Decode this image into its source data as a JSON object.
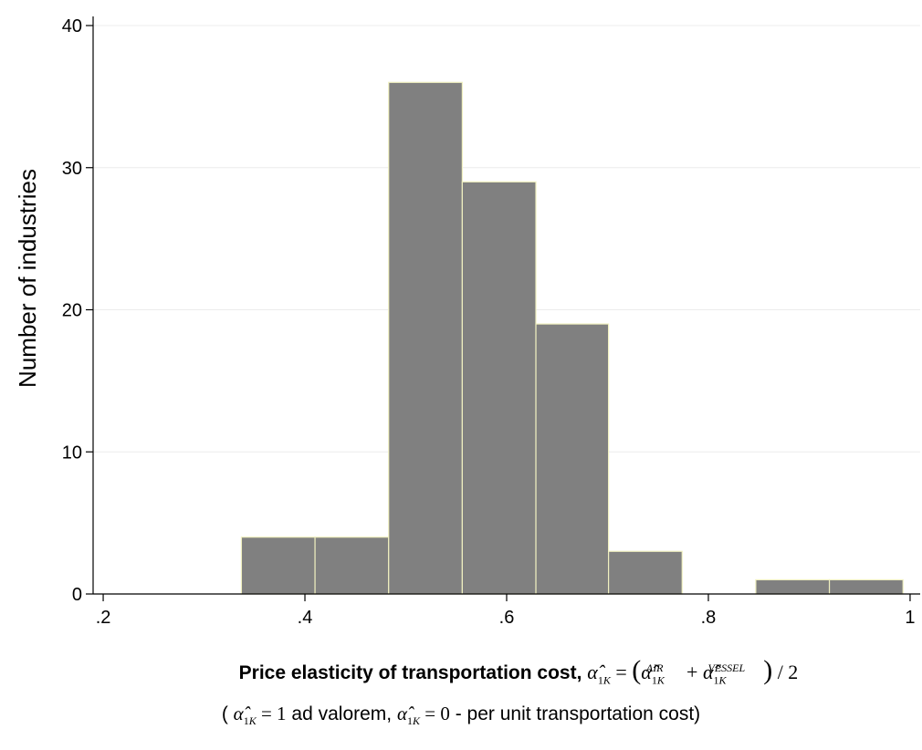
{
  "chart_data": {
    "type": "bar",
    "subtype": "histogram",
    "bins": [
      {
        "x0": 0.337,
        "x1": 0.41,
        "count": 4
      },
      {
        "x0": 0.41,
        "x1": 0.483,
        "count": 4
      },
      {
        "x0": 0.483,
        "x1": 0.556,
        "count": 36
      },
      {
        "x0": 0.556,
        "x1": 0.629,
        "count": 29
      },
      {
        "x0": 0.629,
        "x1": 0.701,
        "count": 19
      },
      {
        "x0": 0.701,
        "x1": 0.774,
        "count": 3
      },
      {
        "x0": 0.774,
        "x1": 0.847,
        "count": 0
      },
      {
        "x0": 0.847,
        "x1": 0.92,
        "count": 1
      },
      {
        "x0": 0.92,
        "x1": 0.993,
        "count": 1
      }
    ],
    "xlim": [
      0.19,
      1.01
    ],
    "ylim": [
      0,
      40
    ],
    "xticks": [
      0.2,
      0.4,
      0.6,
      0.8,
      1.0
    ],
    "xtick_labels": [
      ".2",
      ".4",
      ".6",
      ".8",
      "1"
    ],
    "yticks": [
      0,
      10,
      20,
      30,
      40
    ],
    "ytick_labels": [
      "0",
      "10",
      "20",
      "30",
      "40"
    ],
    "ylabel": "Number of industries",
    "xlabel_text": "Price elasticity of transportation cost,",
    "xlabel_formula": "α̂1K = (α̂1K AIR + α̂1K VESSEL) / 2",
    "note_open": "(",
    "note_formula_a": "α̂1K = 1",
    "note_text_a": "ad valorem,",
    "note_formula_b": "α̂1K = 0",
    "note_text_b": "- per unit transportation cost)",
    "grid": true,
    "colors": {
      "bar_fill": "#808080",
      "bar_edge": "#f0f0c0",
      "grid": "#ececec",
      "axis": "#000000"
    }
  }
}
